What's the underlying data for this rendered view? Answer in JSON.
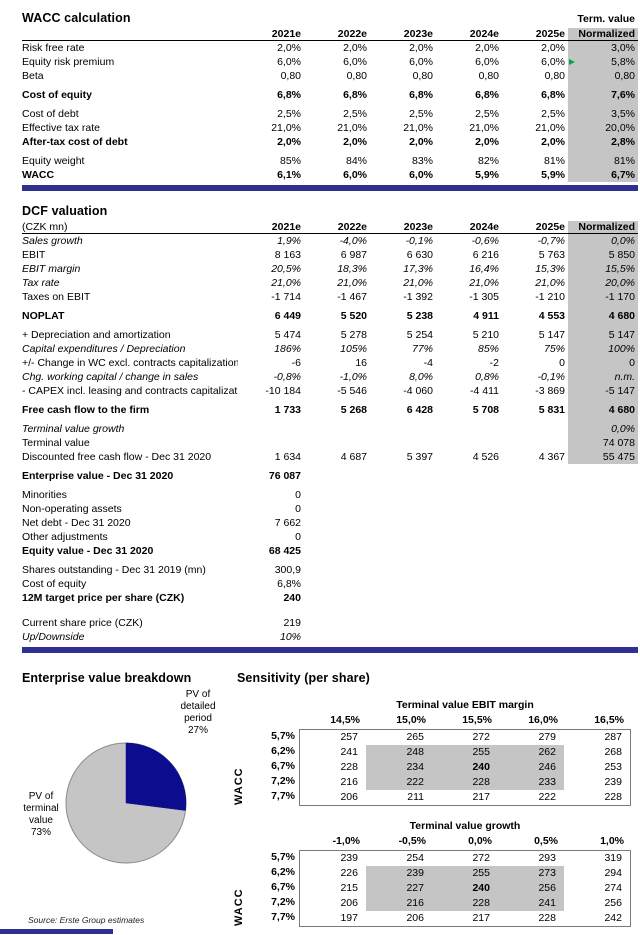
{
  "colors": {
    "navy_bar": "#2e3192",
    "pie_navy": "#0c0c8e",
    "shade_gray": "#c5c5c5",
    "marker_green": "#00a550"
  },
  "wacc": {
    "title": "WACC calculation",
    "term_value_label": "Term. value",
    "columns": [
      "2021e",
      "2022e",
      "2023e",
      "2024e",
      "2025e",
      "Normalized"
    ],
    "rows": [
      {
        "label": "Risk free rate",
        "values": [
          "2,0%",
          "2,0%",
          "2,0%",
          "2,0%",
          "2,0%",
          "3,0%"
        ],
        "shaded": true
      },
      {
        "label": "Equity risk premium",
        "values": [
          "6,0%",
          "6,0%",
          "6,0%",
          "6,0%",
          "6,0%",
          "5,8%"
        ],
        "shaded": true,
        "marker": true
      },
      {
        "label": "Beta",
        "values": [
          "0,80",
          "0,80",
          "0,80",
          "0,80",
          "0,80",
          "0,80"
        ],
        "shaded": true
      },
      {
        "label": "Cost of equity",
        "values": [
          "6,8%",
          "6,8%",
          "6,8%",
          "6,8%",
          "6,8%",
          "7,6%"
        ],
        "shaded": true,
        "bold": true,
        "gap": true
      },
      {
        "label": "Cost of debt",
        "values": [
          "2,5%",
          "2,5%",
          "2,5%",
          "2,5%",
          "2,5%",
          "3,5%"
        ],
        "shaded": true,
        "gap": true
      },
      {
        "label": "Effective tax rate",
        "values": [
          "21,0%",
          "21,0%",
          "21,0%",
          "21,0%",
          "21,0%",
          "20,0%"
        ],
        "shaded": true
      },
      {
        "label": "After-tax cost of debt",
        "values": [
          "2,0%",
          "2,0%",
          "2,0%",
          "2,0%",
          "2,0%",
          "2,8%"
        ],
        "shaded": true,
        "bold": true
      },
      {
        "label": "Equity weight",
        "values": [
          "85%",
          "84%",
          "83%",
          "82%",
          "81%",
          "81%"
        ],
        "shaded": true,
        "gap": true
      },
      {
        "label": "WACC",
        "values": [
          "6,1%",
          "6,0%",
          "6,0%",
          "5,9%",
          "5,9%",
          "6,7%"
        ],
        "shaded": true,
        "bold": true
      }
    ]
  },
  "dcf": {
    "title": "DCF valuation",
    "unit_label": "(CZK mn)",
    "columns": [
      "2021e",
      "2022e",
      "2023e",
      "2024e",
      "2025e",
      "Normalized"
    ],
    "rows": [
      {
        "label": "Sales growth",
        "values": [
          "1,9%",
          "-4,0%",
          "-0,1%",
          "-0,6%",
          "-0,7%",
          "0,0%"
        ],
        "shaded": true,
        "italic": true
      },
      {
        "label": "EBIT",
        "values": [
          "8 163",
          "6 987",
          "6 630",
          "6 216",
          "5 763",
          "5 850"
        ],
        "shaded": true
      },
      {
        "label": "EBIT margin",
        "values": [
          "20,5%",
          "18,3%",
          "17,3%",
          "16,4%",
          "15,3%",
          "15,5%"
        ],
        "shaded": true,
        "italic": true
      },
      {
        "label": "Tax rate",
        "values": [
          "21,0%",
          "21,0%",
          "21,0%",
          "21,0%",
          "21,0%",
          "20,0%"
        ],
        "shaded": true,
        "italic": true
      },
      {
        "label": "Taxes on EBIT",
        "values": [
          "-1 714",
          "-1 467",
          "-1 392",
          "-1 305",
          "-1 210",
          "-1 170"
        ],
        "shaded": true
      },
      {
        "label": "NOPLAT",
        "values": [
          "6 449",
          "5 520",
          "5 238",
          "4 911",
          "4 553",
          "4 680"
        ],
        "shaded": true,
        "bold": true,
        "gap": true
      },
      {
        "label": "+ Depreciation and amortization",
        "values": [
          "5 474",
          "5 278",
          "5 254",
          "5 210",
          "5 147",
          "5 147"
        ],
        "shaded": true,
        "gap": true
      },
      {
        "label": "Capital expenditures / Depreciation",
        "values": [
          "186%",
          "105%",
          "77%",
          "85%",
          "75%",
          "100%"
        ],
        "shaded": true,
        "italic": true
      },
      {
        "label": "+/- Change in WC excl. contracts capitalization",
        "values": [
          "-6",
          "16",
          "-4",
          "-2",
          "0",
          "0"
        ],
        "shaded": true
      },
      {
        "label": "Chg. working capital / change in sales",
        "values": [
          "-0,8%",
          "-1,0%",
          "8,0%",
          "0,8%",
          "-0,1%",
          "n.m."
        ],
        "shaded": true,
        "italic": true
      },
      {
        "label": "- CAPEX incl. leasing and contracts capitalizatic",
        "values": [
          "-10 184",
          "-5 546",
          "-4 060",
          "-4 411",
          "-3 869",
          "-5 147"
        ],
        "shaded": true
      },
      {
        "label": "Free cash flow to the firm",
        "values": [
          "1 733",
          "5 268",
          "6 428",
          "5 708",
          "5 831",
          "4 680"
        ],
        "shaded": true,
        "bold": true,
        "gap": true
      },
      {
        "label": "Terminal value growth",
        "values": [
          "",
          "",
          "",
          "",
          "",
          "0,0%"
        ],
        "shaded": true,
        "italic": true,
        "gap": true
      },
      {
        "label": "Terminal value",
        "values": [
          "",
          "",
          "",
          "",
          "",
          "74 078"
        ],
        "shaded": true
      },
      {
        "label": "Discounted free cash flow - Dec 31 2020",
        "values": [
          "1 634",
          "4 687",
          "5 397",
          "4 526",
          "4 367",
          "55 475"
        ],
        "shaded": true
      },
      {
        "label": "Enterprise value - Dec 31 2020",
        "values": [
          "76 087",
          "",
          "",
          "",
          "",
          ""
        ],
        "bold": true,
        "gap": true
      },
      {
        "label": "Minorities",
        "values": [
          "0",
          "",
          "",
          "",
          "",
          ""
        ],
        "gap": true
      },
      {
        "label": "Non-operating assets",
        "values": [
          "0",
          "",
          "",
          "",
          "",
          ""
        ]
      },
      {
        "label": "Net debt - Dec 31 2020",
        "values": [
          "7 662",
          "",
          "",
          "",
          "",
          ""
        ]
      },
      {
        "label": "Other adjustments",
        "values": [
          "0",
          "",
          "",
          "",
          "",
          ""
        ]
      },
      {
        "label": "Equity value - Dec 31 2020",
        "values": [
          "68 425",
          "",
          "",
          "",
          "",
          ""
        ],
        "bold": true
      },
      {
        "label": "Shares outstanding - Dec 31 2019 (mn)",
        "values": [
          "300,9",
          "",
          "",
          "",
          "",
          ""
        ],
        "gap": true
      },
      {
        "label": "Cost of equity",
        "values": [
          "6,8%",
          "",
          "",
          "",
          "",
          ""
        ]
      },
      {
        "label": "12M target price per share (CZK)",
        "values": [
          "240",
          "",
          "",
          "",
          "",
          ""
        ],
        "bold": true
      },
      {
        "label": "Current share price (CZK)",
        "values": [
          "219",
          "",
          "",
          "",
          "",
          ""
        ],
        "biggap": true
      },
      {
        "label": "Up/Downside",
        "values": [
          "10%",
          "",
          "",
          "",
          "",
          ""
        ],
        "italic": true
      }
    ]
  },
  "breakdown": {
    "title": "Enterprise value breakdown",
    "detailed_label": "PV of\ndetailed\nperiod\n27%",
    "terminal_label": "PV of\nterminal\nvalue\n73%",
    "source": "Source: Erste Group estimates"
  },
  "sensitivity": {
    "title": "Sensitivity (per share)",
    "axis_label": "WACC",
    "tables": [
      {
        "title": "Terminal value EBIT margin",
        "col_headers": [
          "14,5%",
          "15,0%",
          "15,5%",
          "16,0%",
          "16,5%"
        ],
        "row_labels": [
          "5,7%",
          "6,2%",
          "6,7%",
          "7,2%",
          "7,7%"
        ],
        "values": [
          [
            "257",
            "265",
            "272",
            "279",
            "287"
          ],
          [
            "241",
            "248",
            "255",
            "262",
            "268"
          ],
          [
            "228",
            "234",
            "240",
            "246",
            "253"
          ],
          [
            "216",
            "222",
            "228",
            "233",
            "239"
          ],
          [
            "206",
            "211",
            "217",
            "222",
            "228"
          ]
        ],
        "highlight": {
          "rows": [
            1,
            2,
            3
          ],
          "cols": [
            1,
            2,
            3
          ]
        },
        "bold_cell": [
          2,
          2
        ]
      },
      {
        "title": "Terminal value growth",
        "col_headers": [
          "-1,0%",
          "-0,5%",
          "0,0%",
          "0,5%",
          "1,0%"
        ],
        "row_labels": [
          "5,7%",
          "6,2%",
          "6,7%",
          "7,2%",
          "7,7%"
        ],
        "values": [
          [
            "239",
            "254",
            "272",
            "293",
            "319"
          ],
          [
            "226",
            "239",
            "255",
            "273",
            "294"
          ],
          [
            "215",
            "227",
            "240",
            "256",
            "274"
          ],
          [
            "206",
            "216",
            "228",
            "241",
            "256"
          ],
          [
            "197",
            "206",
            "217",
            "228",
            "242"
          ]
        ],
        "highlight": {
          "rows": [
            1,
            2,
            3
          ],
          "cols": [
            1,
            2,
            3
          ]
        },
        "bold_cell": [
          2,
          2
        ]
      }
    ]
  },
  "chart_data": {
    "type": "pie",
    "title": "Enterprise value breakdown",
    "labels": [
      "PV of detailed period",
      "PV of terminal value"
    ],
    "values": [
      27,
      73
    ],
    "colors": [
      "#0c0c8e",
      "#c5c5c5"
    ],
    "legend_position": "around-slices"
  }
}
